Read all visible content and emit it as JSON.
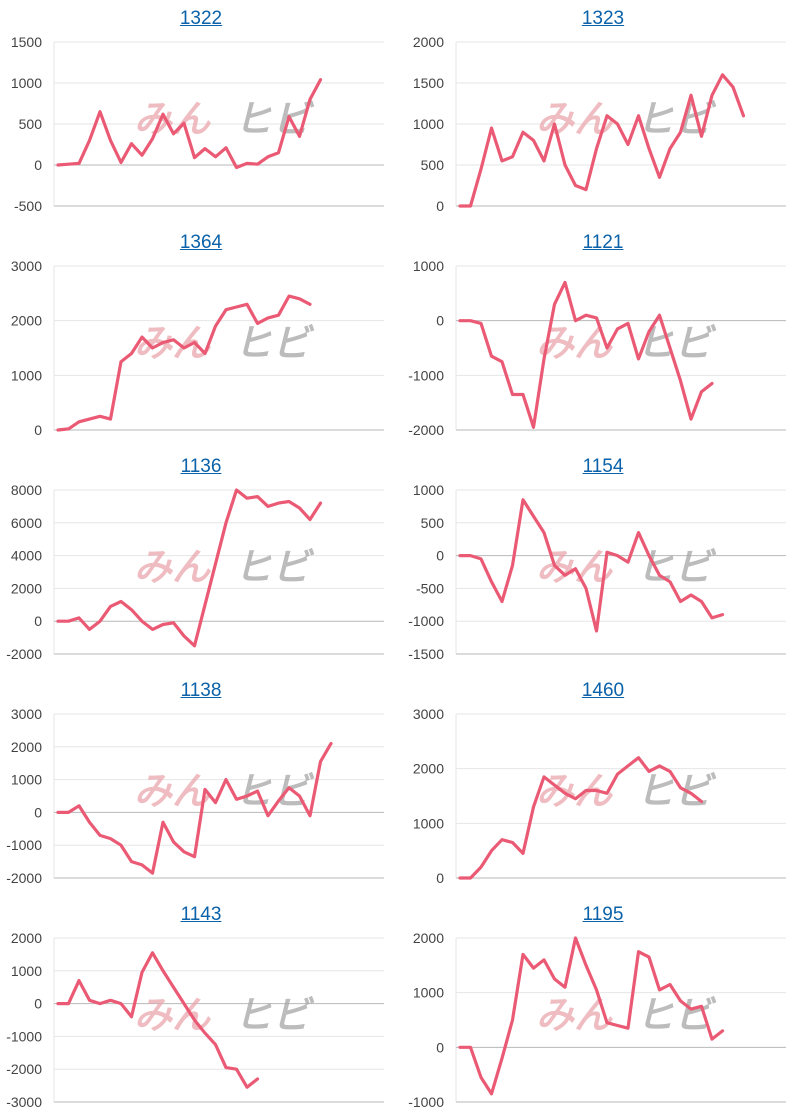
{
  "watermark": {
    "part1": "みん",
    "part2": "ヒビ"
  },
  "colors": {
    "line": "#eb5a74",
    "grid": "#e6e6e6",
    "baseline": "#b8b8b8",
    "title": "#0b62a8",
    "watermark_red": "#e9a6ad",
    "watermark_gray": "#a6a6a6"
  },
  "chart_data": [
    {
      "type": "line",
      "title": "1322",
      "ylim": [
        -500,
        1500
      ],
      "yticks": [
        1500,
        1000,
        500,
        0,
        -500
      ],
      "grid": true,
      "values": [
        0,
        10,
        20,
        300,
        650,
        300,
        30,
        260,
        120,
        320,
        620,
        380,
        510,
        90,
        200,
        100,
        210,
        -30,
        20,
        10,
        100,
        150,
        590,
        350,
        800,
        1040
      ]
    },
    {
      "type": "line",
      "title": "1323",
      "ylim": [
        0,
        2000
      ],
      "yticks": [
        2000,
        1500,
        1000,
        500,
        0
      ],
      "grid": true,
      "values": [
        0,
        0,
        450,
        950,
        550,
        600,
        900,
        800,
        550,
        1000,
        500,
        250,
        200,
        700,
        1100,
        1000,
        750,
        1100,
        700,
        350,
        700,
        900,
        1350,
        850,
        1350,
        1600,
        1450,
        1100
      ]
    },
    {
      "type": "line",
      "title": "1364",
      "ylim": [
        0,
        3000
      ],
      "yticks": [
        3000,
        2000,
        1000,
        0
      ],
      "grid": true,
      "values": [
        0,
        20,
        150,
        200,
        250,
        200,
        1250,
        1400,
        1700,
        1500,
        1600,
        1650,
        1500,
        1600,
        1400,
        1900,
        2200,
        2250,
        2300,
        1950,
        2050,
        2100,
        2450,
        2400,
        2300
      ]
    },
    {
      "type": "line",
      "title": "1121",
      "ylim": [
        -2000,
        1000
      ],
      "yticks": [
        1000,
        0,
        -1000,
        -2000
      ],
      "grid": true,
      "values": [
        0,
        0,
        -50,
        -650,
        -750,
        -1350,
        -1350,
        -1950,
        -700,
        300,
        700,
        0,
        100,
        50,
        -500,
        -150,
        -50,
        -700,
        -200,
        100,
        -500,
        -1100,
        -1800,
        -1300,
        -1150
      ]
    },
    {
      "type": "line",
      "title": "1136",
      "ylim": [
        -2000,
        8000
      ],
      "yticks": [
        8000,
        6000,
        4000,
        2000,
        0,
        -2000
      ],
      "grid": true,
      "values": [
        0,
        0,
        200,
        -500,
        0,
        900,
        1200,
        700,
        0,
        -500,
        -200,
        -100,
        -900,
        -1500,
        1000,
        3500,
        6000,
        8000,
        7500,
        7600,
        7000,
        7200,
        7300,
        6900,
        6200,
        7200
      ]
    },
    {
      "type": "line",
      "title": "1154",
      "ylim": [
        -1500,
        1000
      ],
      "yticks": [
        1000,
        500,
        0,
        -500,
        -1000,
        -1500
      ],
      "grid": true,
      "values": [
        0,
        0,
        -50,
        -400,
        -700,
        -150,
        850,
        600,
        350,
        -150,
        -300,
        -200,
        -500,
        -1150,
        50,
        0,
        -100,
        350,
        0,
        -300,
        -400,
        -700,
        -600,
        -700,
        -950,
        -900
      ]
    },
    {
      "type": "line",
      "title": "1138",
      "ylim": [
        -2000,
        3000
      ],
      "yticks": [
        3000,
        2000,
        1000,
        0,
        -1000,
        -2000
      ],
      "grid": true,
      "values": [
        0,
        0,
        200,
        -300,
        -700,
        -800,
        -1000,
        -1500,
        -1600,
        -1850,
        -300,
        -900,
        -1200,
        -1350,
        700,
        300,
        1000,
        400,
        500,
        650,
        -100,
        350,
        750,
        500,
        -100,
        1550,
        2100
      ]
    },
    {
      "type": "line",
      "title": "1460",
      "ylim": [
        0,
        3000
      ],
      "yticks": [
        3000,
        2000,
        1000,
        0
      ],
      "grid": true,
      "values": [
        0,
        0,
        200,
        500,
        700,
        650,
        450,
        1300,
        1850,
        1700,
        1550,
        1450,
        1600,
        1600,
        1550,
        1900,
        2050,
        2200,
        1950,
        2050,
        1950,
        1650,
        1550,
        1400
      ]
    },
    {
      "type": "line",
      "title": "1143",
      "ylim": [
        -3000,
        2000
      ],
      "yticks": [
        2000,
        1000,
        0,
        -1000,
        -2000,
        -3000
      ],
      "grid": true,
      "values": [
        0,
        0,
        700,
        100,
        0,
        100,
        0,
        -400,
        950,
        1550,
        1000,
        500,
        0,
        -500,
        -900,
        -1250,
        -1950,
        -2000,
        -2550,
        -2300
      ]
    },
    {
      "type": "line",
      "title": "1195",
      "ylim": [
        -1000,
        2000
      ],
      "yticks": [
        2000,
        1000,
        0,
        -1000
      ],
      "grid": true,
      "values": [
        0,
        0,
        -550,
        -850,
        -200,
        500,
        1700,
        1450,
        1600,
        1250,
        1100,
        2000,
        1500,
        1050,
        450,
        400,
        350,
        1750,
        1650,
        1050,
        1150,
        850,
        700,
        750,
        150,
        300
      ]
    }
  ]
}
